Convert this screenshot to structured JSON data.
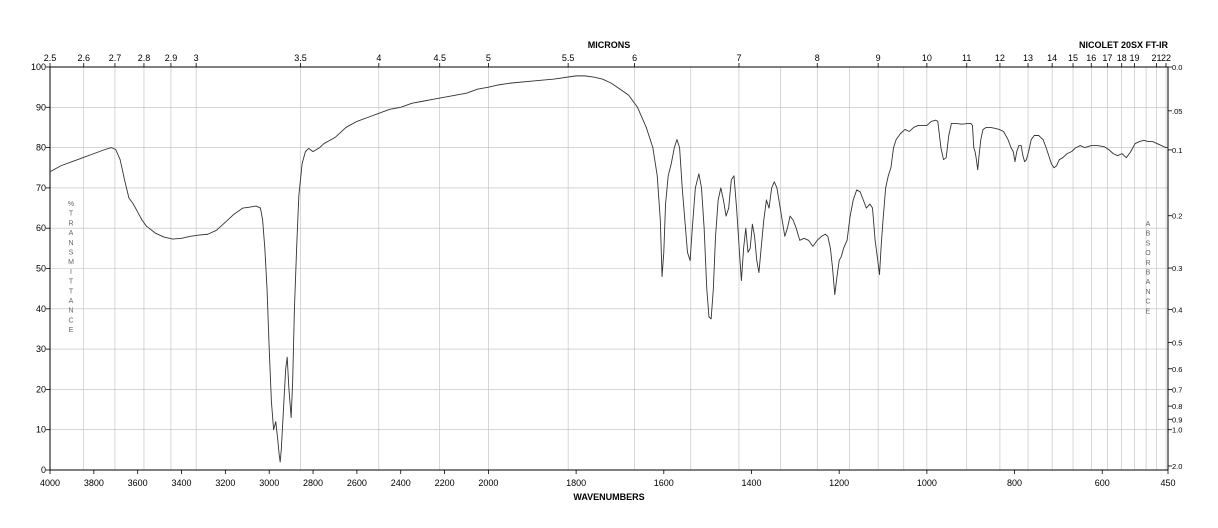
{
  "chart_data": {
    "type": "line",
    "top_axis_title": "MICRONS",
    "instrument": "NICOLET 20SX FT-IR",
    "xlabel": "WAVENUMBERS",
    "ylabel": "% TRANSMITTANCE",
    "y2label": "ABSORBANCE",
    "xlim": [
      4000,
      450
    ],
    "ylim": [
      0,
      100
    ],
    "bottom_ticks": [
      4000,
      3800,
      3600,
      3400,
      3200,
      3000,
      2800,
      2600,
      2400,
      2200,
      2000,
      1800,
      1600,
      1400,
      1200,
      1000,
      800,
      600,
      450
    ],
    "top_tick_labels": [
      {
        "um": 2.5,
        "label": "2.5"
      },
      {
        "um": 2.6,
        "label": "2.6"
      },
      {
        "um": 2.7,
        "label": "2.7"
      },
      {
        "um": 2.8,
        "label": "2.8"
      },
      {
        "um": 2.9,
        "label": "2.9"
      },
      {
        "um": 3.0,
        "label": "3"
      },
      {
        "um": 3.5,
        "label": "3.5"
      },
      {
        "um": 4.0,
        "label": "4"
      },
      {
        "um": 4.5,
        "label": "4.5"
      },
      {
        "um": 5.0,
        "label": "5"
      },
      {
        "um": 5.5,
        "label": "5.5"
      },
      {
        "um": 6.0,
        "label": "6"
      },
      {
        "um": 7.0,
        "label": "7"
      },
      {
        "um": 8.0,
        "label": "8"
      },
      {
        "um": 9.0,
        "label": "9"
      },
      {
        "um": 10.0,
        "label": "10"
      },
      {
        "um": 11.0,
        "label": "11"
      },
      {
        "um": 12.0,
        "label": "12"
      },
      {
        "um": 13.0,
        "label": "13"
      },
      {
        "um": 14.0,
        "label": "14"
      },
      {
        "um": 15.0,
        "label": "15"
      },
      {
        "um": 16.0,
        "label": "16"
      },
      {
        "um": 17.0,
        "label": "17"
      },
      {
        "um": 18.0,
        "label": "18"
      },
      {
        "um": 19.0,
        "label": "19"
      },
      {
        "um": 21.0,
        "label": "21"
      },
      {
        "um": 22.0,
        "label": "22"
      }
    ],
    "y_ticks": [
      0,
      10,
      20,
      30,
      40,
      50,
      60,
      70,
      80,
      90,
      100
    ],
    "absorbance_ticks": [
      {
        "a": 0.0,
        "label": "0.0"
      },
      {
        "a": 0.05,
        "label": ".05"
      },
      {
        "a": 0.1,
        "label": "0.1"
      },
      {
        "a": 0.2,
        "label": "0.2"
      },
      {
        "a": 0.3,
        "label": "0.3"
      },
      {
        "a": 0.4,
        "label": "0.4"
      },
      {
        "a": 0.5,
        "label": "0.5"
      },
      {
        "a": 0.6,
        "label": "0.6"
      },
      {
        "a": 0.7,
        "label": "0.7"
      },
      {
        "a": 0.8,
        "label": "0.8"
      },
      {
        "a": 0.9,
        "label": "0.9"
      },
      {
        "a": 1.0,
        "label": "1.0"
      },
      {
        "a": 2.0,
        "label": "2.0"
      }
    ],
    "grid": true,
    "series": [
      {
        "color": "#333333",
        "points": [
          [
            4000,
            74
          ],
          [
            3950,
            75.5
          ],
          [
            3900,
            76.5
          ],
          [
            3850,
            77.5
          ],
          [
            3800,
            78.5
          ],
          [
            3750,
            79.5
          ],
          [
            3720,
            80
          ],
          [
            3700,
            79.5
          ],
          [
            3680,
            77
          ],
          [
            3660,
            72
          ],
          [
            3640,
            67.5
          ],
          [
            3620,
            66
          ],
          [
            3600,
            64
          ],
          [
            3580,
            62
          ],
          [
            3560,
            60.5
          ],
          [
            3520,
            58.8
          ],
          [
            3480,
            57.8
          ],
          [
            3440,
            57.3
          ],
          [
            3400,
            57.5
          ],
          [
            3360,
            58
          ],
          [
            3320,
            58.3
          ],
          [
            3280,
            58.5
          ],
          [
            3240,
            59.5
          ],
          [
            3200,
            61.5
          ],
          [
            3160,
            63.5
          ],
          [
            3120,
            65
          ],
          [
            3090,
            65.2
          ],
          [
            3060,
            65.5
          ],
          [
            3040,
            65
          ],
          [
            3030,
            62
          ],
          [
            3020,
            55
          ],
          [
            3010,
            45
          ],
          [
            3000,
            30
          ],
          [
            2990,
            17
          ],
          [
            2980,
            10
          ],
          [
            2970,
            12
          ],
          [
            2960,
            7
          ],
          [
            2955,
            4
          ],
          [
            2950,
            2
          ],
          [
            2945,
            5
          ],
          [
            2935,
            15
          ],
          [
            2925,
            25
          ],
          [
            2918,
            28
          ],
          [
            2910,
            20
          ],
          [
            2900,
            13
          ],
          [
            2893,
            22
          ],
          [
            2885,
            40
          ],
          [
            2875,
            55
          ],
          [
            2865,
            68
          ],
          [
            2850,
            76
          ],
          [
            2835,
            79
          ],
          [
            2820,
            79.8
          ],
          [
            2800,
            79
          ],
          [
            2785,
            79.5
          ],
          [
            2770,
            80
          ],
          [
            2750,
            81
          ],
          [
            2700,
            82.5
          ],
          [
            2650,
            85
          ],
          [
            2600,
            86.5
          ],
          [
            2550,
            87.5
          ],
          [
            2500,
            88.5
          ],
          [
            2450,
            89.5
          ],
          [
            2400,
            90
          ],
          [
            2350,
            91
          ],
          [
            2300,
            91.5
          ],
          [
            2250,
            92
          ],
          [
            2200,
            92.5
          ],
          [
            2150,
            93
          ],
          [
            2100,
            93.5
          ],
          [
            2050,
            94.5
          ],
          [
            2000,
            95
          ],
          [
            1980,
            95.5
          ],
          [
            1950,
            96
          ],
          [
            1900,
            96.5
          ],
          [
            1850,
            97
          ],
          [
            1800,
            97.8
          ],
          [
            1780,
            97.8
          ],
          [
            1760,
            97.5
          ],
          [
            1740,
            97
          ],
          [
            1720,
            96
          ],
          [
            1700,
            94.5
          ],
          [
            1680,
            93
          ],
          [
            1660,
            90
          ],
          [
            1640,
            85
          ],
          [
            1625,
            80
          ],
          [
            1615,
            73
          ],
          [
            1608,
            62
          ],
          [
            1604,
            48
          ],
          [
            1600,
            54
          ],
          [
            1596,
            66
          ],
          [
            1590,
            73
          ],
          [
            1583,
            76
          ],
          [
            1576,
            80
          ],
          [
            1570,
            82
          ],
          [
            1564,
            80
          ],
          [
            1558,
            70
          ],
          [
            1552,
            62
          ],
          [
            1546,
            54
          ],
          [
            1540,
            52
          ],
          [
            1535,
            60
          ],
          [
            1528,
            70
          ],
          [
            1520,
            73.5
          ],
          [
            1514,
            70
          ],
          [
            1508,
            60
          ],
          [
            1502,
            45
          ],
          [
            1497,
            38
          ],
          [
            1492,
            37.5
          ],
          [
            1487,
            45
          ],
          [
            1482,
            58
          ],
          [
            1476,
            67
          ],
          [
            1470,
            70
          ],
          [
            1464,
            67
          ],
          [
            1458,
            63
          ],
          [
            1452,
            65
          ],
          [
            1446,
            72
          ],
          [
            1440,
            73
          ],
          [
            1434,
            65
          ],
          [
            1428,
            55
          ],
          [
            1423,
            47
          ],
          [
            1418,
            55
          ],
          [
            1413,
            60
          ],
          [
            1408,
            54
          ],
          [
            1403,
            55
          ],
          [
            1398,
            61
          ],
          [
            1393,
            58
          ],
          [
            1388,
            52
          ],
          [
            1383,
            49
          ],
          [
            1378,
            55
          ],
          [
            1372,
            62
          ],
          [
            1366,
            67
          ],
          [
            1360,
            65
          ],
          [
            1354,
            70
          ],
          [
            1348,
            71.5
          ],
          [
            1342,
            70
          ],
          [
            1336,
            66
          ],
          [
            1330,
            62
          ],
          [
            1324,
            58
          ],
          [
            1318,
            60
          ],
          [
            1312,
            63
          ],
          [
            1305,
            62
          ],
          [
            1298,
            60
          ],
          [
            1290,
            57
          ],
          [
            1280,
            57.5
          ],
          [
            1270,
            57
          ],
          [
            1260,
            55.5
          ],
          [
            1250,
            57
          ],
          [
            1240,
            58
          ],
          [
            1232,
            58.5
          ],
          [
            1226,
            58
          ],
          [
            1220,
            55
          ],
          [
            1215,
            50
          ],
          [
            1210,
            43.5
          ],
          [
            1205,
            48
          ],
          [
            1200,
            52
          ],
          [
            1195,
            53
          ],
          [
            1190,
            55
          ],
          [
            1182,
            57
          ],
          [
            1175,
            63
          ],
          [
            1168,
            67
          ],
          [
            1160,
            69.5
          ],
          [
            1152,
            69
          ],
          [
            1145,
            67
          ],
          [
            1138,
            65
          ],
          [
            1130,
            66
          ],
          [
            1124,
            65
          ],
          [
            1118,
            57
          ],
          [
            1112,
            52
          ],
          [
            1108,
            48.5
          ],
          [
            1104,
            56
          ],
          [
            1100,
            62
          ],
          [
            1094,
            70
          ],
          [
            1088,
            73
          ],
          [
            1082,
            75
          ],
          [
            1076,
            80
          ],
          [
            1070,
            82
          ],
          [
            1060,
            83.5
          ],
          [
            1050,
            84.5
          ],
          [
            1040,
            84
          ],
          [
            1030,
            85
          ],
          [
            1020,
            85.5
          ],
          [
            1010,
            85.5
          ],
          [
            1000,
            85.5
          ],
          [
            990,
            86.5
          ],
          [
            980,
            86.8
          ],
          [
            975,
            86.5
          ],
          [
            968,
            80
          ],
          [
            962,
            77
          ],
          [
            956,
            77.5
          ],
          [
            950,
            83
          ],
          [
            944,
            86
          ],
          [
            935,
            86
          ],
          [
            920,
            85.8
          ],
          [
            905,
            86
          ],
          [
            900,
            86
          ],
          [
            896,
            85.5
          ],
          [
            893,
            80
          ],
          [
            890,
            79
          ],
          [
            887,
            77
          ],
          [
            884,
            74.5
          ],
          [
            881,
            78
          ],
          [
            877,
            82
          ],
          [
            872,
            84.5
          ],
          [
            865,
            85
          ],
          [
            855,
            85
          ],
          [
            845,
            84.8
          ],
          [
            835,
            84.5
          ],
          [
            825,
            84
          ],
          [
            815,
            82
          ],
          [
            808,
            80
          ],
          [
            803,
            79
          ],
          [
            799,
            76.5
          ],
          [
            795,
            79
          ],
          [
            790,
            80.5
          ],
          [
            785,
            80.5
          ],
          [
            781,
            78
          ],
          [
            777,
            76.5
          ],
          [
            773,
            77
          ],
          [
            768,
            79
          ],
          [
            762,
            82
          ],
          [
            755,
            83
          ],
          [
            745,
            83
          ],
          [
            735,
            82
          ],
          [
            728,
            80
          ],
          [
            722,
            78
          ],
          [
            716,
            76
          ],
          [
            710,
            75
          ],
          [
            704,
            75.5
          ],
          [
            698,
            77
          ],
          [
            690,
            77.5
          ],
          [
            680,
            78.5
          ],
          [
            670,
            79
          ],
          [
            660,
            80
          ],
          [
            650,
            80.5
          ],
          [
            640,
            80
          ],
          [
            625,
            80.5
          ],
          [
            610,
            80.5
          ],
          [
            595,
            80.2
          ],
          [
            585,
            79.5
          ],
          [
            575,
            78.5
          ],
          [
            565,
            78
          ],
          [
            555,
            78.5
          ],
          [
            545,
            77.5
          ],
          [
            535,
            79
          ],
          [
            525,
            81
          ],
          [
            515,
            81.5
          ],
          [
            505,
            81.8
          ],
          [
            495,
            81.5
          ],
          [
            485,
            81.5
          ],
          [
            475,
            81
          ],
          [
            465,
            80.5
          ],
          [
            455,
            80
          ],
          [
            450,
            80
          ]
        ]
      }
    ]
  }
}
